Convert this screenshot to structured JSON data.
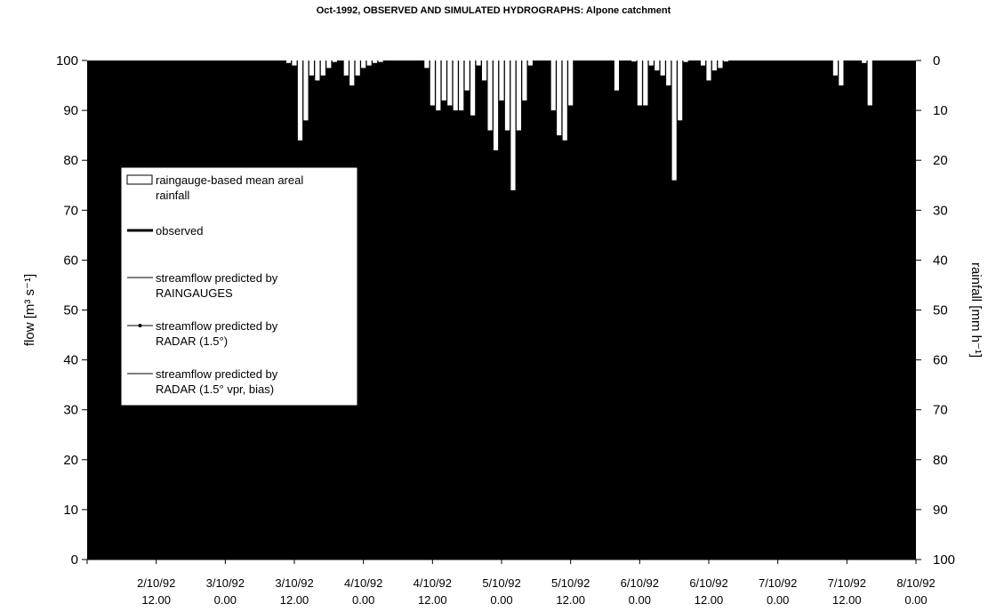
{
  "chart_data": {
    "type": "bar",
    "title": "Oct-1992, OBSERVED AND SIMULATED HYDROGRAPHS: Alpone catchment",
    "ylabel_left": "flow [m³ s⁻¹]",
    "ylabel_right": "rainfall [mm h⁻¹]",
    "ylim_left": [
      0,
      100
    ],
    "ylim_right": [
      0,
      100
    ],
    "right_axis_inverted": true,
    "yticks_left": [
      "0",
      "10",
      "20",
      "30",
      "40",
      "50",
      "60",
      "70",
      "80",
      "90",
      "100"
    ],
    "yticks_right": [
      "100",
      "90",
      "80",
      "70",
      "60",
      "50",
      "40",
      "30",
      "20",
      "10",
      "0"
    ],
    "xlim_hours": [
      24,
      168
    ],
    "x_tick_labels": [
      {
        "date": "2/10/92",
        "time": "12.00"
      },
      {
        "date": "3/10/92",
        "time": "0.00"
      },
      {
        "date": "3/10/92",
        "time": "12.00"
      },
      {
        "date": "4/10/92",
        "time": "0.00"
      },
      {
        "date": "4/10/92",
        "time": "12.00"
      },
      {
        "date": "5/10/92",
        "time": "0.00"
      },
      {
        "date": "5/10/92",
        "time": "12.00"
      },
      {
        "date": "6/10/92",
        "time": "0.00"
      },
      {
        "date": "6/10/92",
        "time": "12.00"
      },
      {
        "date": "7/10/92",
        "time": "0.00"
      },
      {
        "date": "7/10/92",
        "time": "12.00"
      },
      {
        "date": "8/10/92",
        "time": "0.00"
      }
    ],
    "plot_background": "#000000",
    "bar_color": "#ffffff",
    "legend_placement": "left",
    "legend": [
      {
        "label": "raingauge-based mean areal rainfall",
        "lines": [
          "raingauge-based mean areal",
          "rainfall"
        ],
        "marker": "box"
      },
      {
        "label": "observed",
        "lines": [
          "observed"
        ],
        "marker": "thick-line"
      },
      {
        "label": "streamflow predicted by RAINGAUGES",
        "lines": [
          "streamflow predicted by",
          "RAINGAUGES"
        ],
        "marker": "line"
      },
      {
        "label": "streamflow predicted by RADAR (1.5°)",
        "lines": [
          "streamflow predicted by",
          "RADAR (1.5°)"
        ],
        "marker": "line-dot"
      },
      {
        "label": "streamflow predicted by RADAR (1.5° vpr, bias)",
        "lines": [
          "streamflow predicted by",
          "RADAR (1.5° vpr, bias)"
        ],
        "marker": "line"
      }
    ],
    "rainfall": {
      "name": "raingauge-based mean areal rainfall",
      "hours": [
        59,
        60,
        61,
        62,
        63,
        64,
        65,
        66,
        67,
        69,
        70,
        71,
        72,
        73,
        74,
        75,
        83,
        84,
        85,
        86,
        87,
        88,
        89,
        90,
        91,
        92,
        93,
        94,
        95,
        96,
        97,
        98,
        99,
        100,
        101,
        105,
        106,
        107,
        108,
        116,
        119,
        120,
        121,
        122,
        123,
        124,
        125,
        126,
        127,
        128,
        131,
        132,
        133,
        134,
        135,
        154,
        155,
        159,
        160
      ],
      "mm_per_h": [
        0.5,
        1,
        16,
        12,
        3,
        4,
        3,
        1.5,
        0.3,
        3,
        5,
        3,
        1.5,
        1,
        0.5,
        0.3,
        1.5,
        9,
        10,
        8,
        9,
        10,
        10,
        6,
        11,
        1,
        4,
        14,
        18,
        8,
        14,
        26,
        14,
        8,
        1,
        10,
        15,
        16,
        9,
        6,
        0.2,
        9,
        9,
        1,
        2,
        3,
        5,
        24,
        12,
        0.3,
        1,
        4,
        2,
        1.5,
        0.2,
        3,
        5,
        0.5,
        9
      ]
    }
  }
}
